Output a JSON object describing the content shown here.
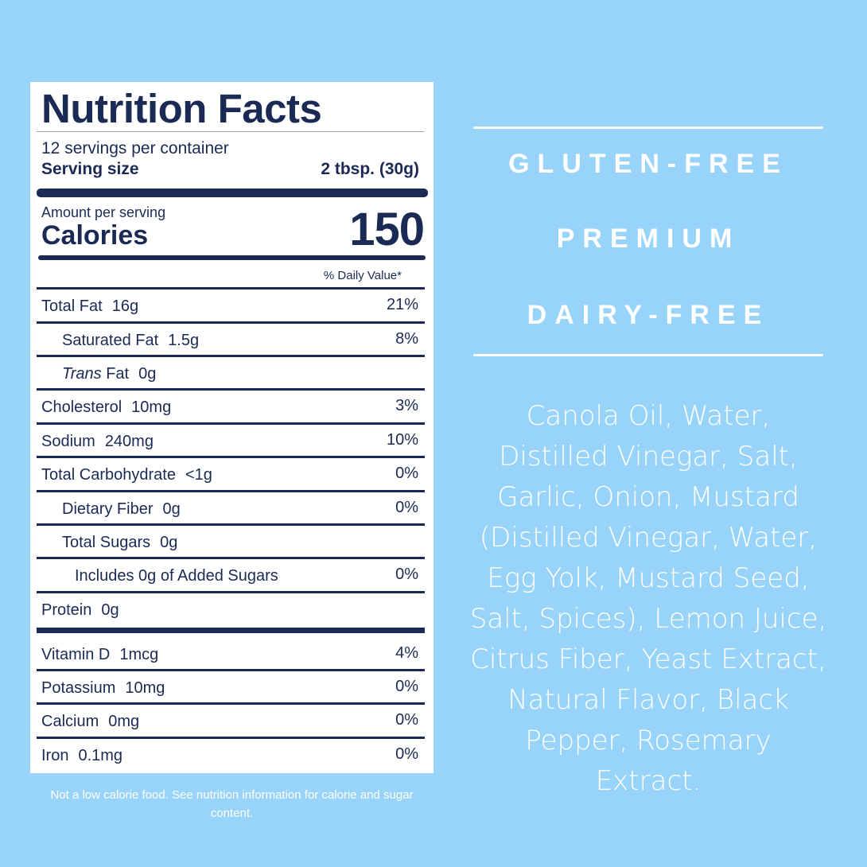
{
  "label": {
    "title": "Nutrition Facts",
    "servings": "12 servings per container",
    "serving_size_label": "Serving size",
    "serving_size_value": "2 tbsp. (30g)",
    "amount_per_serving": "Amount per serving",
    "calories_label": "Calories",
    "calories_value": "150",
    "dv_header": "% Daily Value*",
    "rows": [
      {
        "name": "Total Fat",
        "amount": "16g",
        "dv": "21%"
      },
      {
        "name": "Saturated Fat",
        "amount": "1.5g",
        "dv": "8%"
      },
      {
        "name": "Trans",
        "name2": "Fat",
        "amount": "0g",
        "dv": ""
      },
      {
        "name": "Cholesterol",
        "amount": "10mg",
        "dv": "3%"
      },
      {
        "name": "Sodium",
        "amount": "240mg",
        "dv": "10%"
      },
      {
        "name": "Total Carbohydrate",
        "amount": "<1g",
        "dv": "0%"
      },
      {
        "name": "Dietary Fiber",
        "amount": "0g",
        "dv": "0%"
      },
      {
        "name": "Total Sugars",
        "amount": "0g",
        "dv": ""
      },
      {
        "name": "Includes 0g of Added Sugars",
        "amount": "",
        "dv": "0%"
      },
      {
        "name": "Protein",
        "amount": "0g",
        "dv": ""
      },
      {
        "name": "Vitamin D",
        "amount": "1mcg",
        "dv": "4%"
      },
      {
        "name": "Potassium",
        "amount": "10mg",
        "dv": "0%"
      },
      {
        "name": "Calcium",
        "amount": "0mg",
        "dv": "0%"
      },
      {
        "name": "Iron",
        "amount": "0.1mg",
        "dv": "0%"
      }
    ]
  },
  "footnote": "Not a low calorie food. See nutrition information for calorie and sugar content.",
  "tags": [
    "GLUTEN-FREE",
    "PREMIUM",
    "DAIRY-FREE"
  ],
  "ingredients": "Canola Oil, Water, Distilled Vinegar, Salt, Garlic, Onion, Mustard (Distilled Vinegar, Water, Egg Yolk, Mustard Seed, Salt, Spices), Lemon Juice, Citrus Fiber, Yeast Extract, Natural Flavor, Black Pepper, Rosemary Extract.",
  "colors": {
    "background": "#98d3fa",
    "navy": "#1b2a55",
    "white": "#ffffff"
  }
}
